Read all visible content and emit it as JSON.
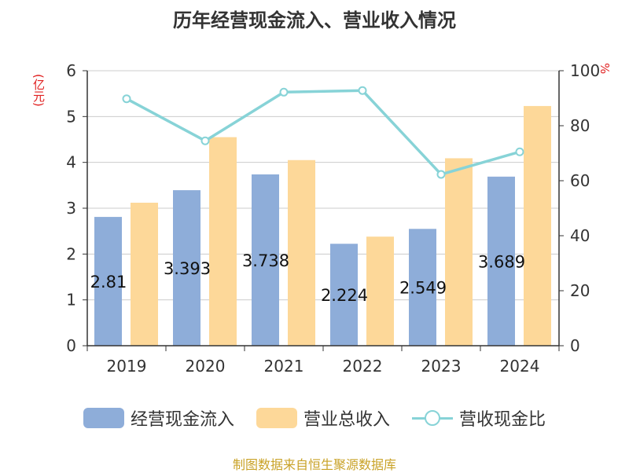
{
  "title": "历年经营现金流入、营业收入情况",
  "left_unit": "(亿元)",
  "right_unit": "%",
  "source": "制图数据来自恒生聚源数据库",
  "colors": {
    "cash_inflow": "#8EADD9",
    "revenue": "#FDD899",
    "ratio": "#87D3D7"
  },
  "chart_data": {
    "type": "bar",
    "categories": [
      "2019",
      "2020",
      "2021",
      "2022",
      "2023",
      "2024"
    ],
    "series": [
      {
        "name": "经营现金流入",
        "axis": "left",
        "values": [
          2.81,
          3.393,
          3.738,
          2.224,
          2.549,
          3.689
        ],
        "labels": [
          "2.81",
          "3.393",
          "3.738",
          "2.224",
          "2.549",
          "3.689"
        ]
      },
      {
        "name": "营业总收入",
        "axis": "left",
        "values": [
          3.12,
          4.55,
          4.05,
          2.38,
          4.09,
          5.23
        ]
      },
      {
        "name": "营收现金比",
        "axis": "right",
        "type": "line",
        "values": [
          89.8,
          74.5,
          92.2,
          92.8,
          62.3,
          70.5
        ]
      }
    ],
    "y_left": {
      "ylim": [
        0,
        6
      ],
      "ticks": [
        "0",
        "1",
        "2",
        "3",
        "4",
        "5",
        "6"
      ]
    },
    "y_right": {
      "ylim": [
        0,
        100
      ],
      "ticks": [
        "0",
        "20",
        "40",
        "60",
        "80",
        "100"
      ]
    },
    "grid": true,
    "legend": "bottom"
  }
}
